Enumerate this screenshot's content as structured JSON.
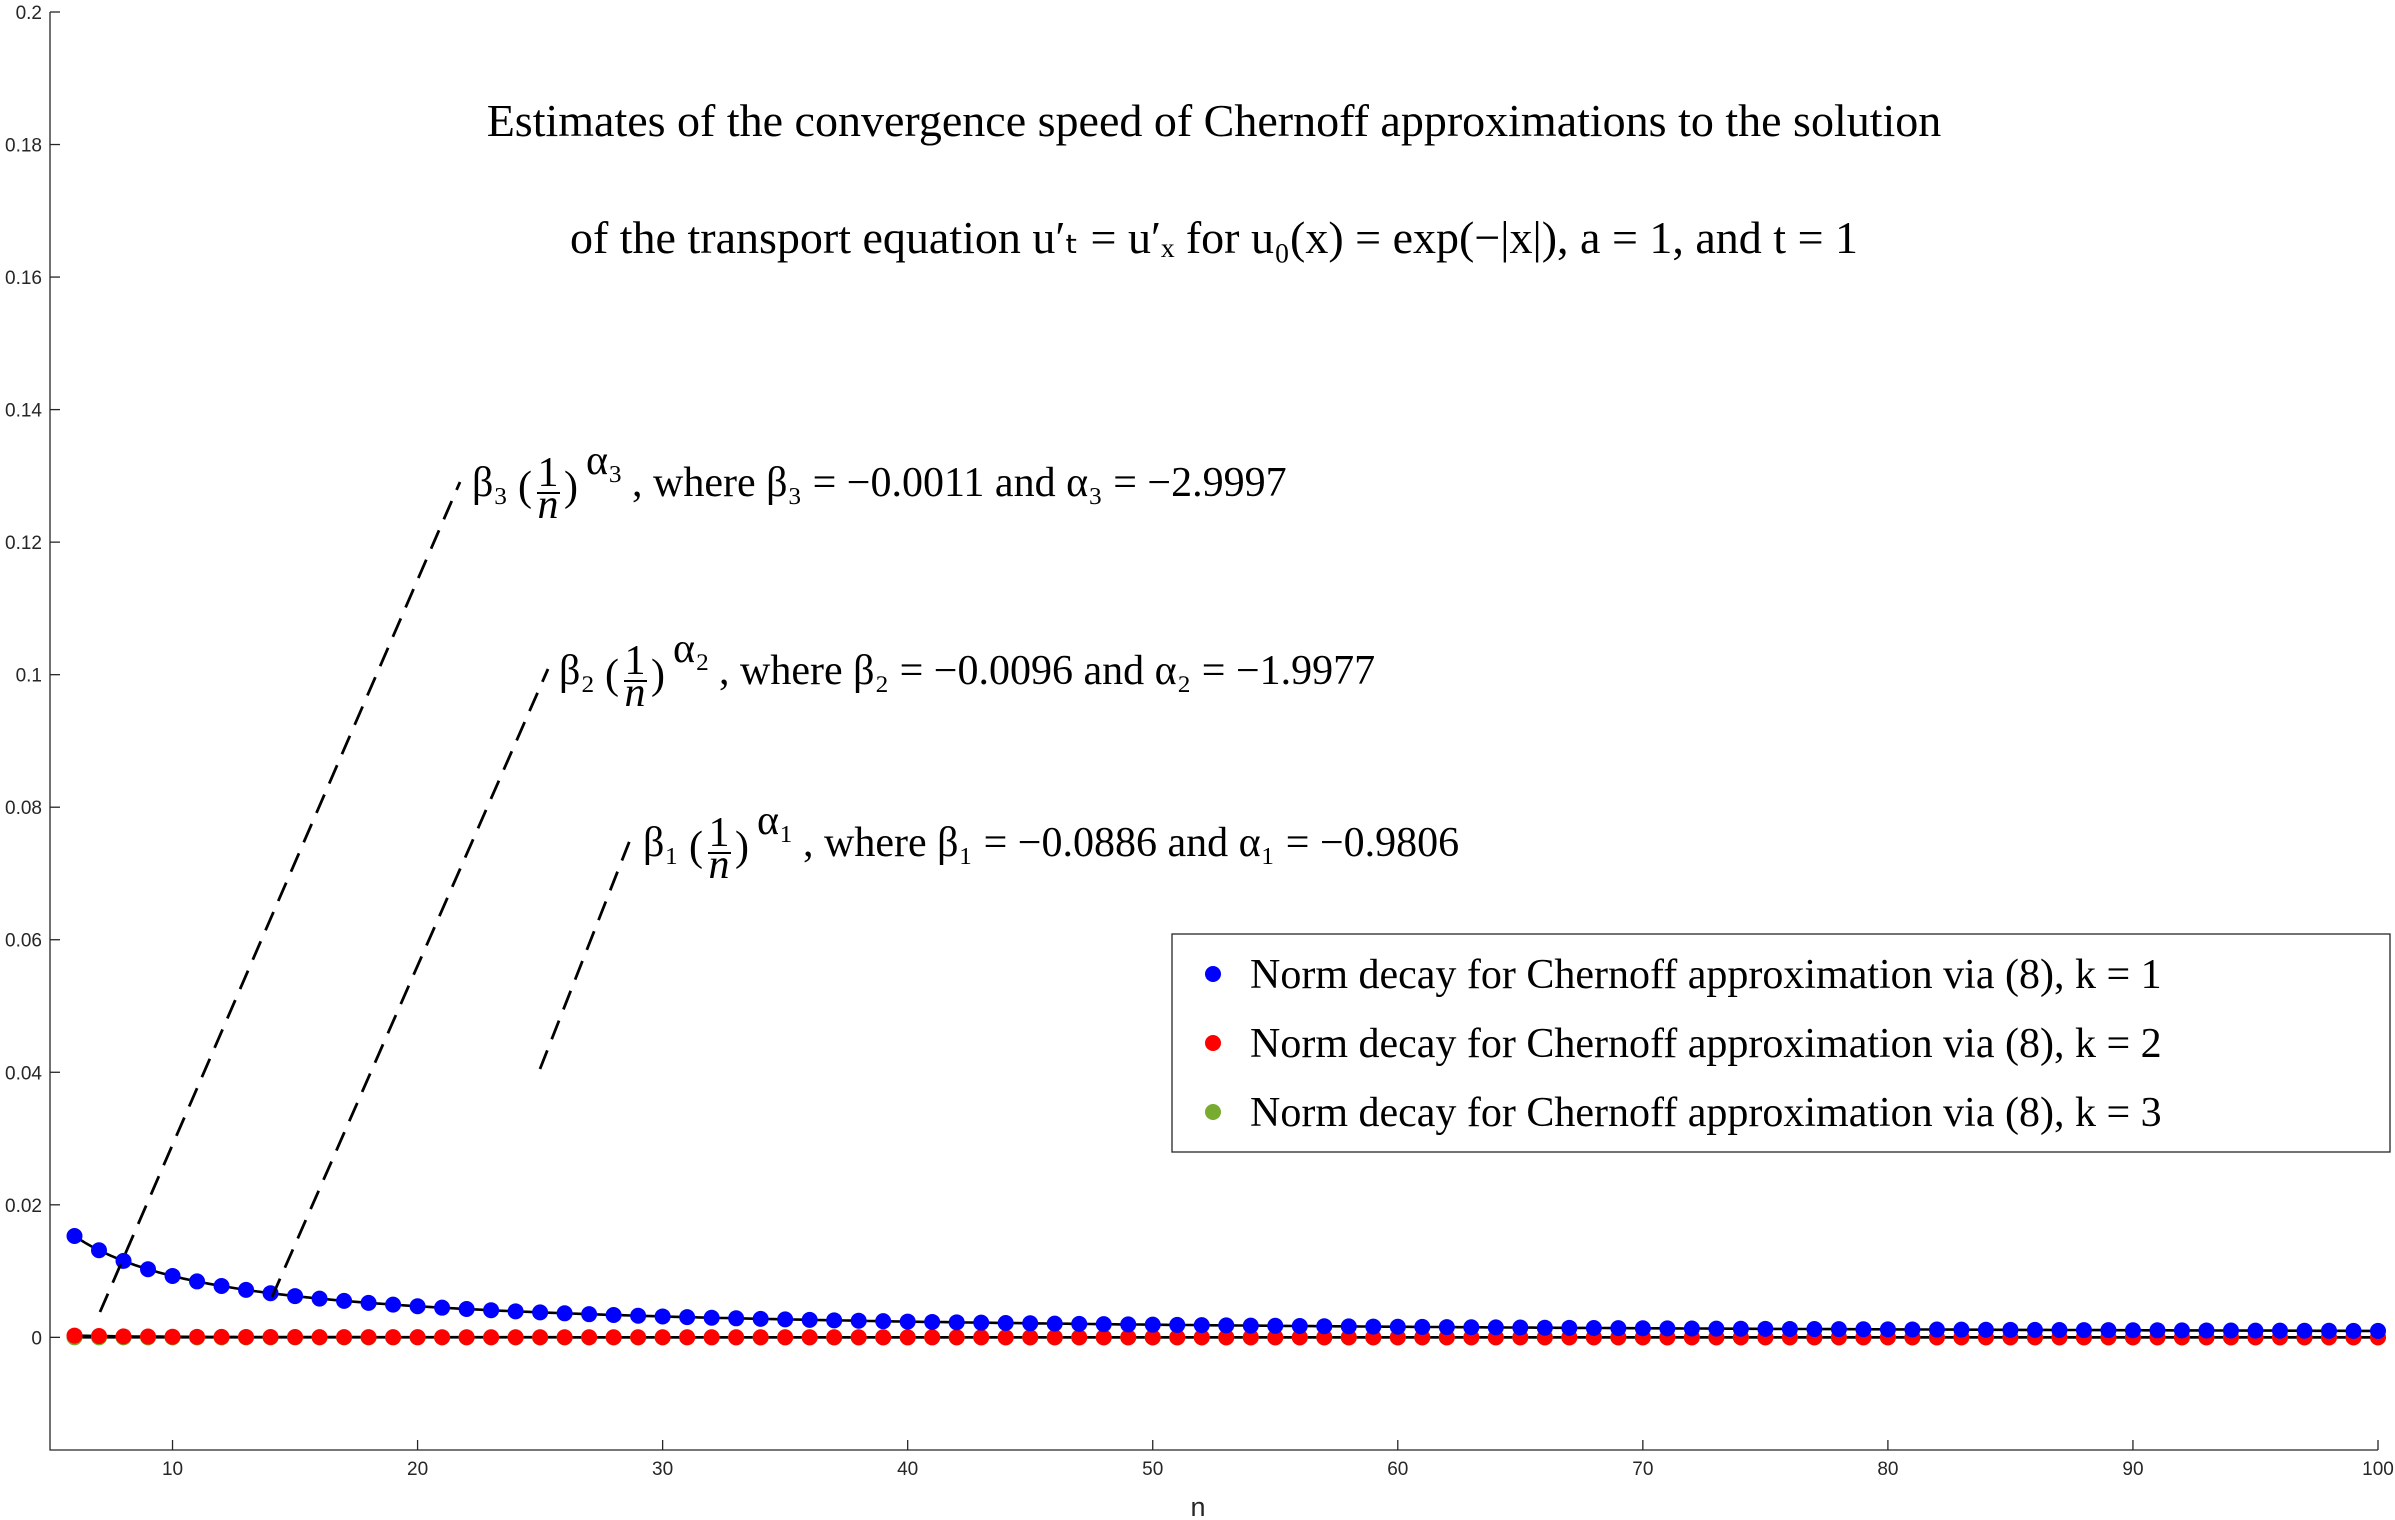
{
  "chart_data": {
    "type": "scatter",
    "title_lines": [
      "Estimates of the convergence speed of Chernoff approximations to the solution",
      "of the transport equation u′ₜ = u′ₓ for u₀(x) = exp(−|x|), a = 1, and t = 1"
    ],
    "xlabel": "n",
    "ylabel": "",
    "xlim": [
      5,
      100
    ],
    "ylim": [
      -0.017,
      0.2
    ],
    "xticks": [
      "10",
      "20",
      "30",
      "40",
      "50",
      "60",
      "70",
      "80",
      "90",
      "100"
    ],
    "yticks": [
      "0",
      "0.02",
      "0.04",
      "0.06",
      "0.08",
      "0.1",
      "0.12",
      "0.14",
      "0.16",
      "0.18",
      "0.2"
    ],
    "x": [
      6,
      100
    ],
    "series": [
      {
        "name": "Norm decay for Chernoff approximation via (8), k = 1",
        "color": "#0000ff",
        "beta": 0.0886,
        "alpha": 0.9806
      },
      {
        "name": "Norm decay for Chernoff approximation via (8), k = 2",
        "color": "#ff0000",
        "beta": 0.0096,
        "alpha": 1.9977
      },
      {
        "name": "Norm decay for Chernoff approximation via (8), k = 3",
        "color": "#77ac30",
        "beta": 0.0011,
        "alpha": 2.9997
      }
    ],
    "fit_color": "#000000",
    "annotations": [
      {
        "symbol": "β₃",
        "frac_num": "1",
        "frac_den": "n",
        "exponent": "α₃",
        "text": ", where β₃ = −0.0011 and α₃ = −2.9997"
      },
      {
        "symbol": "β₂",
        "frac_num": "1",
        "frac_den": "n",
        "exponent": "α₂",
        "text": ", where β₂ = −0.0096 and α₂ = −1.9977"
      },
      {
        "symbol": "β₁",
        "frac_num": "1",
        "frac_den": "n",
        "exponent": "α₁",
        "text": ", where β₁ = −0.0886 and α₁ = −0.9806"
      }
    ],
    "legend_placement": "right-middle",
    "grid": false
  }
}
